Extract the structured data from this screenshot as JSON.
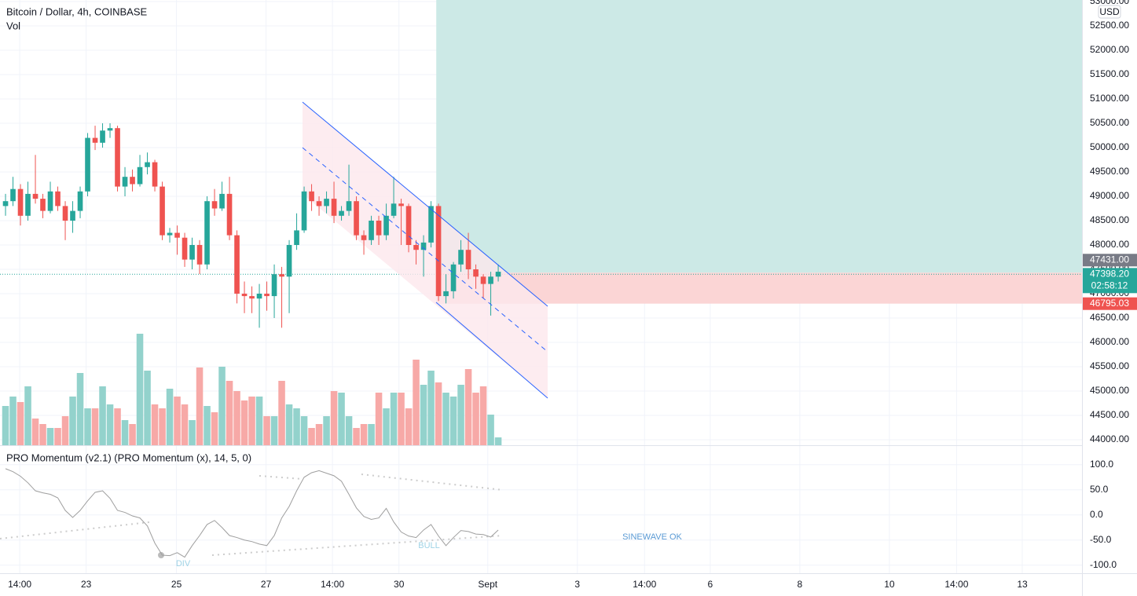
{
  "chart_data": [
    {
      "type": "candlestick",
      "title": "Bitcoin / Dollar, 4h, COINBASE",
      "subtitle": "Vol",
      "currency": "USD",
      "categories": [
        null,
        null,
        null,
        null,
        null,
        null,
        null,
        null,
        null,
        null,
        null,
        null,
        null,
        null,
        null,
        null,
        null,
        null,
        null,
        null,
        null,
        null,
        null,
        null,
        null,
        null,
        null,
        null,
        null,
        null,
        null,
        null,
        null,
        null,
        null,
        null,
        null,
        null,
        null,
        null,
        null,
        null,
        null,
        null,
        null,
        null,
        null,
        null,
        null,
        null,
        null,
        null,
        null,
        null,
        null,
        null,
        null,
        null,
        null,
        null,
        null,
        null,
        null,
        null,
        null,
        null,
        null
      ],
      "open": [
        48800,
        48900,
        49150,
        48600,
        49050,
        48950,
        48700,
        49100,
        48800,
        48500,
        48700,
        49100,
        50200,
        50100,
        50350,
        50400,
        49200,
        49400,
        49250,
        49600,
        49700,
        49200,
        48200,
        48250,
        48150,
        47700,
        48000,
        47600,
        48900,
        48750,
        49050,
        48200,
        47000,
        46950,
        46900,
        47000,
        46950,
        47400,
        47350,
        48000,
        48300,
        49100,
        48900,
        48800,
        48950,
        48600,
        48700,
        48900,
        48200,
        48100,
        48500,
        48200,
        48600,
        48850,
        48800,
        48000,
        47900,
        48050,
        48800,
        46950,
        47050,
        47600,
        47900,
        47500,
        47350,
        47200,
        47350
      ],
      "high": [
        49050,
        49400,
        49250,
        49300,
        49850,
        49050,
        49300,
        49200,
        48900,
        48900,
        49200,
        50300,
        50450,
        50500,
        50500,
        50450,
        49600,
        49550,
        49850,
        49900,
        49750,
        49300,
        48350,
        48400,
        48250,
        48150,
        48100,
        49000,
        49150,
        49300,
        49400,
        48300,
        47250,
        47150,
        47200,
        47250,
        47600,
        47550,
        48100,
        48650,
        49200,
        49250,
        49000,
        49100,
        49300,
        48800,
        49650,
        49000,
        48300,
        48600,
        48600,
        48850,
        49400,
        48950,
        48850,
        48100,
        48200,
        48900,
        48850,
        47400,
        47650,
        48100,
        48250,
        47600,
        47400,
        47450,
        47600
      ],
      "low": [
        48600,
        48800,
        48400,
        48500,
        48850,
        48550,
        48650,
        48700,
        48100,
        48250,
        48550,
        49000,
        49950,
        50000,
        50200,
        49100,
        49000,
        49100,
        49200,
        49450,
        49100,
        48100,
        48050,
        47800,
        47550,
        47500,
        47400,
        47500,
        48600,
        48700,
        48100,
        46800,
        46600,
        46600,
        46300,
        46650,
        46500,
        46300,
        46600,
        47900,
        48250,
        48700,
        48600,
        48650,
        48450,
        48500,
        48600,
        48100,
        47800,
        48000,
        48000,
        48100,
        48550,
        48000,
        47850,
        47600,
        47350,
        47950,
        46850,
        46800,
        46900,
        47450,
        47300,
        47100,
        46900,
        46550,
        47250
      ],
      "close": [
        48900,
        49150,
        48600,
        49050,
        48950,
        48700,
        49100,
        48800,
        48500,
        48700,
        49100,
        50200,
        50100,
        50350,
        50400,
        49200,
        49400,
        49250,
        49600,
        49700,
        49200,
        48200,
        48250,
        48150,
        47700,
        48000,
        47600,
        48900,
        48750,
        49050,
        48200,
        47000,
        46950,
        46900,
        47000,
        46950,
        47400,
        47350,
        48000,
        48300,
        49100,
        48900,
        48800,
        48950,
        48600,
        48700,
        48900,
        48200,
        48100,
        48500,
        48200,
        48600,
        48850,
        48800,
        48000,
        47900,
        48050,
        48800,
        46950,
        47050,
        47600,
        47900,
        47500,
        47350,
        47200,
        47350,
        47450
      ],
      "volume": [
        50,
        62,
        55,
        75,
        34,
        27,
        22,
        22,
        37,
        62,
        92,
        47,
        47,
        75,
        52,
        47,
        32,
        27,
        142,
        95,
        52,
        47,
        72,
        62,
        52,
        32,
        99,
        50,
        42,
        100,
        82,
        69,
        57,
        62,
        62,
        37,
        37,
        82,
        52,
        47,
        37,
        22,
        27,
        37,
        69,
        67,
        37,
        22,
        27,
        27,
        67,
        47,
        67,
        67,
        47,
        109,
        77,
        95,
        80,
        67,
        62,
        77,
        97,
        67,
        75,
        39,
        10
      ],
      "volume_ylim": [
        0,
        567
      ],
      "up_color": "#26a69a",
      "down_color": "#ef5350",
      "up_volume_color": "#93d2cc",
      "down_volume_color": "#f7a9a7",
      "xlim": [
        -0.74,
        144.2
      ],
      "xticks": [
        {
          "value": 1.9,
          "label": "14:00"
        },
        {
          "value": 10.8,
          "label": "23"
        },
        {
          "value": 22.9,
          "label": "25"
        },
        {
          "value": 34.9,
          "label": "27"
        },
        {
          "value": 43.8,
          "label": "14:00"
        },
        {
          "value": 52.7,
          "label": "30"
        },
        {
          "value": 64.6,
          "label": "Sept"
        },
        {
          "value": 76.6,
          "label": "3"
        },
        {
          "value": 85.6,
          "label": "14:00"
        },
        {
          "value": 94.4,
          "label": "6"
        },
        {
          "value": 106.4,
          "label": "8"
        },
        {
          "value": 118.4,
          "label": "10"
        },
        {
          "value": 127.4,
          "label": "14:00"
        },
        {
          "value": 136.2,
          "label": "13"
        }
      ],
      "ylim": [
        43887,
        53032
      ],
      "yticks": [
        {
          "value": 44000,
          "label": "44000.00"
        },
        {
          "value": 44500,
          "label": "44500.00"
        },
        {
          "value": 45000,
          "label": "45000.00"
        },
        {
          "value": 45500,
          "label": "45500.00"
        },
        {
          "value": 46000,
          "label": "46000.00"
        },
        {
          "value": 46500,
          "label": "46500.00"
        },
        {
          "value": 47000,
          "label": "47000.00"
        },
        {
          "value": 47500,
          "label": "47500.00"
        },
        {
          "value": 48000,
          "label": "48000.00"
        },
        {
          "value": 48500,
          "label": "48500.00"
        },
        {
          "value": 49000,
          "label": "49000.00"
        },
        {
          "value": 49500,
          "label": "49500.00"
        },
        {
          "value": 50000,
          "label": "50000.00"
        },
        {
          "value": 50500,
          "label": "50500.00"
        },
        {
          "value": 51000,
          "label": "51000.00"
        },
        {
          "value": 51500,
          "label": "51500.00"
        },
        {
          "value": 52000,
          "label": "52000.00"
        },
        {
          "value": 52500,
          "label": "52500.00"
        },
        {
          "value": 53000,
          "label": "53000.00"
        }
      ],
      "grid": true,
      "position_start": 57.7,
      "entry": {
        "value": 47431,
        "label": "47431.00"
      },
      "stop": {
        "value": 46795.03,
        "label": "46795.03"
      },
      "last_price": {
        "value": 47398.2,
        "label": "47398.20"
      },
      "countdown": "02:58:12",
      "target_color": "#cce9e6",
      "stop_color": "#fbd5d5"
    },
    {
      "type": "line",
      "title": "PRO Momentum (v2.1) (PRO Momentum (x), 14, 5, 0)",
      "values": [
        92,
        86,
        77,
        64,
        48,
        44,
        41,
        34,
        9,
        -5,
        9,
        28,
        45,
        48,
        33,
        9,
        5,
        -2,
        -6,
        -22,
        -56,
        -80,
        -81,
        -75,
        -84,
        -61,
        -41,
        -19,
        -11,
        -25,
        -41,
        -45,
        -50,
        -53,
        -58,
        -61,
        -41,
        -6,
        17,
        48,
        75,
        84,
        88,
        83,
        78,
        67,
        41,
        14,
        -3,
        -9,
        -6,
        13,
        -14,
        -34,
        -42,
        -45,
        -30,
        -19,
        -42,
        -61,
        -45,
        -31,
        -33,
        -38,
        -39,
        -44,
        -30
      ],
      "color": "#9e9e9e",
      "ylim": [
        -116,
        134
      ],
      "yticks": [
        {
          "value": 100,
          "label": "100.0"
        },
        {
          "value": 50,
          "label": "50.0"
        },
        {
          "value": 0,
          "label": "0.0"
        },
        {
          "value": -50,
          "label": "-50.0"
        },
        {
          "value": -100,
          "label": "-100.0"
        }
      ],
      "annotations": [
        "DIV",
        "BULL",
        "SINEWAVE OK"
      ]
    }
  ]
}
